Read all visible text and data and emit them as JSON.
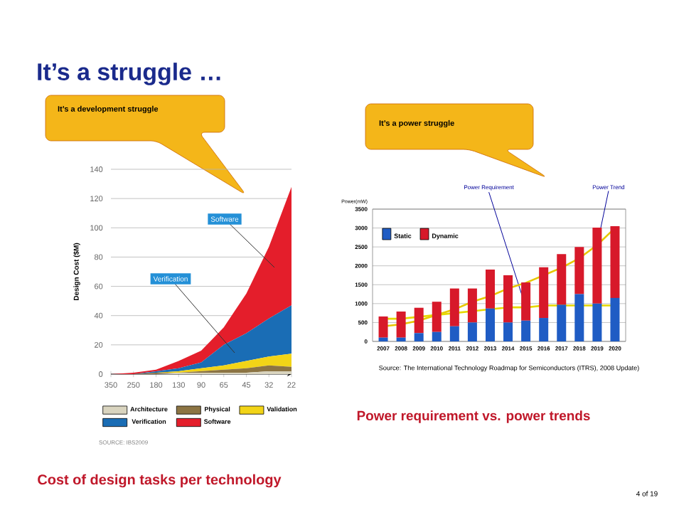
{
  "chart_data": [
    {
      "type": "area",
      "stacked": true,
      "title": "Cost of design tasks per technology",
      "ylabel": "Design Cost ($M)",
      "categories": [
        "350",
        "250",
        "180",
        "130",
        "90",
        "65",
        "45",
        "32",
        "22"
      ],
      "ylim": [
        0,
        140
      ],
      "yticks": [
        0,
        20,
        40,
        60,
        80,
        100,
        120,
        140
      ],
      "grid": "y",
      "legend": "bottom",
      "series": [
        {
          "name": "Architecture",
          "color": "#d9d4bf",
          "values": [
            0,
            0,
            0,
            1,
            1,
            1,
            1,
            2,
            2
          ]
        },
        {
          "name": "Physical",
          "color": "#8c7443",
          "values": [
            0,
            0,
            1,
            0,
            1,
            2,
            3,
            4,
            3
          ]
        },
        {
          "name": "Validation",
          "color": "#f2d417",
          "values": [
            0,
            0,
            0,
            1,
            2,
            3,
            5,
            6,
            9
          ]
        },
        {
          "name": "Verification",
          "color": "#1a6db5",
          "values": [
            0,
            0,
            1,
            2,
            4,
            14,
            19,
            26,
            33
          ]
        },
        {
          "name": "Software",
          "color": "#e41e2b",
          "values": [
            0,
            1,
            1,
            5,
            8,
            12,
            27,
            49,
            81
          ]
        }
      ],
      "annotations": [
        "It’s a struggle …",
        "It’s a development struggle",
        "Software",
        "Verification",
        "SOURCE: IBS2009"
      ]
    },
    {
      "type": "bar",
      "stacked": true,
      "title": "Power requirement vs. power trends",
      "ylabel": "Power(mW)",
      "categories": [
        "2007",
        "2008",
        "2009",
        "2010",
        "2011",
        "2012",
        "2013",
        "2014",
        "2015",
        "2016",
        "2017",
        "2018",
        "2019",
        "2020"
      ],
      "ylim": [
        0,
        3500
      ],
      "yticks": [
        0,
        500,
        1000,
        1500,
        2000,
        2500,
        3000,
        3500
      ],
      "grid": "y",
      "legend": "top left",
      "series": [
        {
          "name": "Static",
          "color": "#1f5cc4",
          "values": [
            100,
            100,
            220,
            250,
            400,
            500,
            870,
            500,
            550,
            620,
            970,
            1250,
            1000,
            1150
          ]
        },
        {
          "name": "Dynamic",
          "color": "#d7192a",
          "values": [
            560,
            690,
            670,
            800,
            1000,
            900,
            1030,
            1250,
            1010,
            1340,
            1340,
            1250,
            2010,
            1900
          ]
        },
        {
          "name": "Power Requirement",
          "type": "line",
          "color": "#e6d800",
          "values": [
            600,
            600,
            650,
            700,
            750,
            800,
            850,
            900,
            900,
            950,
            950,
            950,
            950,
            950
          ]
        },
        {
          "name": "Power Trend",
          "type": "line",
          "color": "#e6c800",
          "values": [
            400,
            450,
            550,
            700,
            850,
            1050,
            1200,
            1400,
            1550,
            1750,
            1950,
            2200,
            2550,
            3000
          ]
        }
      ],
      "annotations": [
        "It’s a power struggle",
        "Source: The International Technology Roadmap for Semiconductors (ITRS), 2008 Update)",
        "4 of 19"
      ]
    }
  ]
}
